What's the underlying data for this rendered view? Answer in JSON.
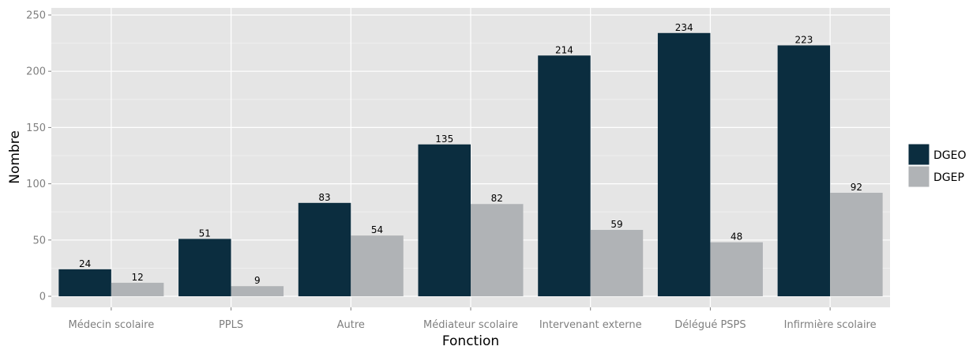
{
  "chart_data": {
    "type": "bar",
    "xlabel": "Fonction",
    "ylabel": "Nombre",
    "categories": [
      "Médecin scolaire",
      "PPLS",
      "Autre",
      "Médiateur scolaire",
      "Intervenant externe",
      "Délégué PSPS",
      "Infirmière scolaire"
    ],
    "series": [
      {
        "name": "DGEO",
        "values": [
          24,
          51,
          83,
          135,
          214,
          234,
          223
        ],
        "color": "#0b2d3f"
      },
      {
        "name": "DGEP",
        "values": [
          12,
          9,
          54,
          82,
          59,
          48,
          92
        ],
        "color": "#b0b3b6"
      }
    ],
    "yticks": [
      0,
      50,
      100,
      150,
      200,
      250
    ],
    "ylim": [
      0,
      250
    ],
    "grid": true,
    "legend_position": "right",
    "panel_background": "#e5e5e5",
    "grid_color": "#ffffff"
  }
}
